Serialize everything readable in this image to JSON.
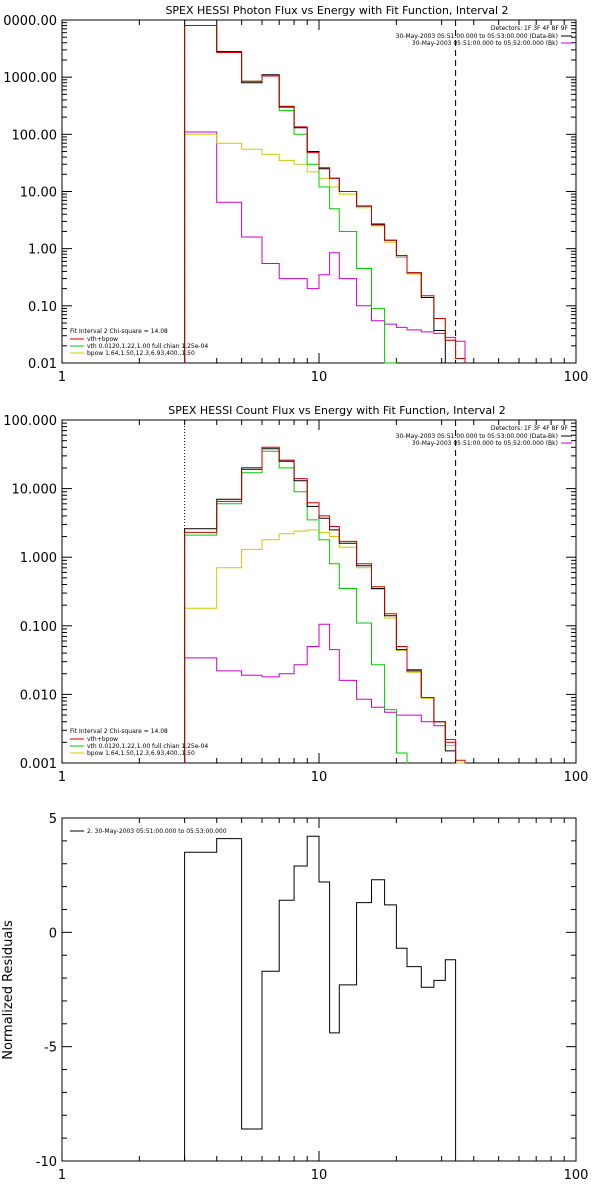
{
  "colors": {
    "data": "#000000",
    "fit_total": "#cc0000",
    "vth": "#00cc00",
    "bpow": "#cccc00",
    "background": "#cc00cc",
    "axes": "#000000"
  },
  "chart_data": [
    {
      "type": "line",
      "title": "SPEX HESSI Photon Flux vs Energy with Fit Function, Interval 2",
      "xlabel": "",
      "ylabel": "",
      "xscale": "log",
      "yscale": "log",
      "xlim": [
        1,
        100
      ],
      "ylim": [
        0.01,
        10000
      ],
      "x_tick_labels": [
        "1",
        "10",
        "100"
      ],
      "y_tick_labels": [
        "0.01",
        "0.10",
        "1.00",
        "10.00",
        "100.00",
        "1000.00",
        "0000.00"
      ],
      "dotted_line_x": 3,
      "dashed_line_x": 34,
      "legend_topright": {
        "detectors": "Detectors: 1F 3F 4F 8F 9F",
        "entries": [
          {
            "text": "30-May-2003 05:51:00.000 to 05:53:00.000 (Data-Bk)",
            "color": "#000000"
          },
          {
            "text": "30-May-2003 05:51:00.000 to 05:52:00.000 (Bk)",
            "color": "#cc00cc"
          }
        ]
      },
      "legend_bottomleft": {
        "header": "Fit Interval  2    Chi-square = 14.08",
        "entries": [
          {
            "text": "vth+bpow",
            "color": "#cc0000"
          },
          {
            "text": "vth 0.0120,1.22,1.00  full chian 1.25e-04",
            "color": "#00cc00"
          },
          {
            "text": "bpow 1.64,1.50,12.3,6.93,400.,1.50",
            "color": "#cccc00"
          }
        ]
      },
      "bin_edges": [
        3,
        4,
        5,
        6,
        7,
        8,
        9,
        10,
        11,
        12,
        14,
        16,
        18,
        20,
        22,
        25,
        28,
        31,
        34,
        37
      ],
      "series": [
        {
          "id": "data",
          "values": [
            8000,
            2800,
            800,
            1100,
            300,
            130,
            50,
            25,
            17,
            10,
            5.5,
            2.7,
            1.4,
            0.75,
            0.38,
            0.14,
            0.037,
            0.01,
            null
          ]
        },
        {
          "id": "fit_total",
          "values": [
            8000,
            2700,
            850,
            1050,
            310,
            135,
            48,
            26,
            17,
            10,
            5.6,
            2.6,
            1.4,
            0.76,
            0.38,
            0.15,
            0.06,
            0.025,
            0.012
          ]
        },
        {
          "id": "vth",
          "values": [
            8000,
            2700,
            850,
            1050,
            260,
            100,
            30,
            12,
            5,
            2,
            0.45,
            0.09,
            0.01,
            null,
            null,
            null,
            null,
            null,
            null
          ]
        },
        {
          "id": "bpow",
          "values": [
            100,
            70,
            55,
            45,
            35,
            30,
            22,
            17,
            12,
            9,
            5.2,
            2.5,
            1.3,
            0.7,
            0.36,
            0.14,
            0.06,
            0.025,
            0.012
          ]
        },
        {
          "id": "background",
          "values": [
            110,
            6.5,
            1.6,
            0.55,
            0.3,
            0.3,
            0.2,
            0.35,
            0.85,
            0.3,
            0.1,
            0.055,
            0.048,
            0.042,
            0.038,
            0.035,
            0.033,
            0.028,
            0.024
          ]
        }
      ]
    },
    {
      "type": "line",
      "title": "SPEX HESSI Count Flux vs Energy with Fit Function, Interval 2",
      "xlabel": "",
      "ylabel": "",
      "xscale": "log",
      "yscale": "log",
      "xlim": [
        1,
        100
      ],
      "ylim": [
        0.001,
        100
      ],
      "x_tick_labels": [
        "1",
        "10",
        "100"
      ],
      "y_tick_labels": [
        "0.001",
        "0.010",
        "0.100",
        "1.000",
        "10.000",
        "100.000"
      ],
      "dotted_line_x": 3,
      "dashed_line_x": 34,
      "legend_topright": {
        "detectors": "Detectors: 1F 3F 4F 8F 9F",
        "entries": [
          {
            "text": "30-May-2003 05:51:00.000 to 05:53:00.000 (Data-Bk)",
            "color": "#000000"
          },
          {
            "text": "30-May-2003 05:51:00.000 to 05:52:00.000 (Bk)",
            "color": "#cc00cc"
          }
        ]
      },
      "legend_bottomleft": {
        "header": "Fit Interval  2    Chi-square = 14.08",
        "entries": [
          {
            "text": "vth+bpow",
            "color": "#cc0000"
          },
          {
            "text": "vth 0.0120,1.22,1.00  full chian 1.25e-04",
            "color": "#00cc00"
          },
          {
            "text": "bpow 1.64,1.50,12.3,6.93,400.,1.50",
            "color": "#cccc00"
          }
        ]
      },
      "bin_edges": [
        3,
        4,
        5,
        6,
        7,
        8,
        9,
        10,
        11,
        12,
        14,
        16,
        18,
        20,
        22,
        25,
        28,
        31,
        34,
        37
      ],
      "series": [
        {
          "id": "data",
          "values": [
            2.6,
            7,
            20,
            38,
            25,
            13,
            5.5,
            3.7,
            2.5,
            1.6,
            0.75,
            0.35,
            0.14,
            0.045,
            0.022,
            0.009,
            0.004,
            0.0015,
            null
          ]
        },
        {
          "id": "fit_total",
          "values": [
            2.3,
            6.5,
            19,
            40,
            26,
            14,
            6.2,
            4,
            2.8,
            1.7,
            0.8,
            0.37,
            0.15,
            0.05,
            0.023,
            0.009,
            0.004,
            0.002,
            0.0011
          ]
        },
        {
          "id": "vth",
          "values": [
            2.1,
            6,
            17,
            35,
            20,
            9,
            3.5,
            1.8,
            0.8,
            0.35,
            0.11,
            0.027,
            0.006,
            0.0014,
            null,
            null,
            null,
            null,
            null
          ]
        },
        {
          "id": "bpow",
          "values": [
            0.18,
            0.7,
            1.3,
            1.8,
            2.2,
            2.4,
            2.5,
            2.3,
            2,
            1.4,
            0.7,
            0.34,
            0.13,
            0.044,
            0.021,
            0.0088,
            0.004,
            0.0018,
            0.001
          ]
        },
        {
          "id": "background",
          "values": [
            0.034,
            0.022,
            0.019,
            0.018,
            0.02,
            0.027,
            0.05,
            0.105,
            0.045,
            0.016,
            0.0085,
            0.0065,
            0.0055,
            0.005,
            0.005,
            0.004,
            0.0035,
            0.0022,
            null
          ]
        }
      ]
    },
    {
      "type": "line",
      "title": "",
      "xlabel": "",
      "ylabel": "Normalized Residuals",
      "xscale": "log",
      "yscale": "linear",
      "xlim": [
        1,
        100
      ],
      "ylim": [
        -10,
        5
      ],
      "x_tick_labels": [
        "1",
        "10",
        "100"
      ],
      "y_tick_values": [
        -10,
        -5,
        0,
        5
      ],
      "y_tick_labels": [
        "-10",
        "-5",
        "0",
        "5"
      ],
      "legend": [
        {
          "text": "2. 30-May-2003 05:51:00.000 to 05:53:00.000",
          "color": "#000000"
        }
      ],
      "bin_edges": [
        3,
        4,
        5,
        6,
        7,
        8,
        9,
        10,
        11,
        12,
        14,
        16,
        18,
        20,
        22,
        25,
        28,
        31,
        34
      ],
      "series": [
        {
          "id": "residuals",
          "values": [
            3.5,
            4.1,
            -8.6,
            -1.7,
            1.4,
            2.9,
            4.2,
            2.2,
            -4.4,
            -2.3,
            1.3,
            2.3,
            1.2,
            -0.7,
            -1.5,
            -2.4,
            -2.1,
            -1.2
          ]
        }
      ]
    }
  ]
}
